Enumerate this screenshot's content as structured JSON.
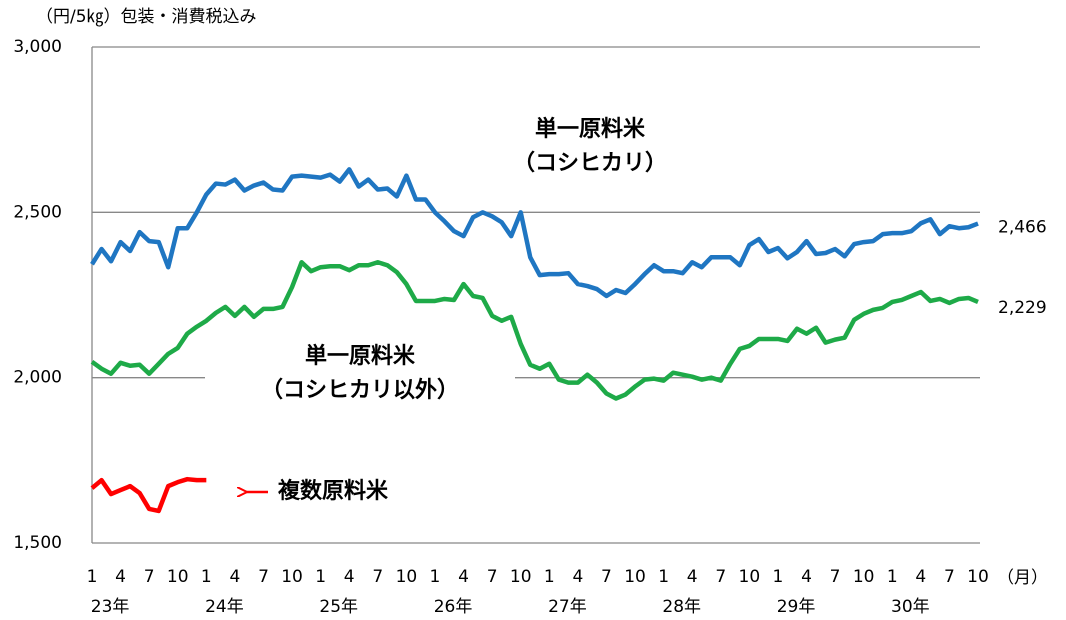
{
  "chart_data": {
    "type": "line",
    "y_label": "（円/5㎏）包装・消費税込み",
    "x_unit": "（月）",
    "years": [
      "23年",
      "24年",
      "25年",
      "26年",
      "27年",
      "28年",
      "29年",
      "30年"
    ],
    "categories": [
      "1",
      null,
      null,
      "4",
      null,
      null,
      "7",
      null,
      null,
      "10",
      null,
      null,
      "1",
      null,
      null,
      "4",
      null,
      null,
      "7",
      null,
      null,
      "10",
      null,
      null,
      "1",
      null,
      null,
      "4",
      null,
      null,
      "7",
      null,
      null,
      "10",
      null,
      null,
      "1",
      null,
      null,
      "4",
      null,
      null,
      "7",
      null,
      null,
      "10",
      null,
      null,
      "1",
      null,
      null,
      "4",
      null,
      null,
      "7",
      null,
      null,
      "10",
      null,
      null,
      "1",
      null,
      null,
      "4",
      null,
      null,
      "7",
      null,
      null,
      "10",
      null,
      null,
      "1",
      null,
      null,
      "4",
      null,
      null,
      "7",
      null,
      null,
      "10",
      null,
      null,
      "1",
      null,
      null,
      "4",
      null,
      null,
      "7",
      null,
      null,
      "10"
    ],
    "ylim": [
      1500,
      3000
    ],
    "yticks": [
      {
        "value": 1500,
        "label": "1,500"
      },
      {
        "value": 2000,
        "label": "2,000"
      },
      {
        "value": 2500,
        "label": "2,500"
      },
      {
        "value": 3000,
        "label": "3,000"
      }
    ],
    "grid": true,
    "series": [
      {
        "name": "単一原料米（コシヒカリ）",
        "color": "#1f76c2",
        "values": [
          2343,
          2389,
          2352,
          2410,
          2383,
          2440,
          2413,
          2410,
          2334,
          2452,
          2452,
          2500,
          2554,
          2587,
          2584,
          2599,
          2566,
          2581,
          2590,
          2569,
          2566,
          2608,
          2611,
          2608,
          2605,
          2614,
          2593,
          2630,
          2578,
          2599,
          2569,
          2572,
          2548,
          2611,
          2539,
          2539,
          2500,
          2473,
          2443,
          2428,
          2485,
          2500,
          2488,
          2470,
          2428,
          2500,
          2364,
          2310,
          2313,
          2313,
          2316,
          2283,
          2277,
          2268,
          2247,
          2265,
          2256,
          2283,
          2313,
          2340,
          2322,
          2322,
          2316,
          2349,
          2334,
          2364,
          2364,
          2364,
          2340,
          2401,
          2419,
          2380,
          2392,
          2361,
          2380,
          2413,
          2374,
          2377,
          2389,
          2367,
          2404,
          2410,
          2413,
          2434,
          2437,
          2437,
          2443,
          2467,
          2479,
          2434,
          2458,
          2452,
          2455,
          2466
        ],
        "value_labels": [
          null,
          null,
          null,
          null,
          null,
          null,
          null,
          null,
          null,
          null,
          null,
          null,
          null,
          null,
          null,
          null,
          null,
          null,
          null,
          null,
          null,
          null,
          null,
          null,
          null,
          null,
          null,
          null,
          null,
          null,
          null,
          null,
          null,
          null,
          null,
          null,
          null,
          null,
          null,
          null,
          null,
          null,
          null,
          null,
          null,
          null,
          null,
          null,
          null,
          null,
          null,
          null,
          null,
          null,
          null,
          null,
          null,
          null,
          null,
          null,
          null,
          null,
          null,
          null,
          null,
          null,
          null,
          null,
          null,
          null,
          null,
          null,
          null,
          null,
          null,
          null,
          null,
          null,
          null,
          null,
          null,
          null,
          null,
          null,
          null,
          null,
          null,
          null,
          null,
          null,
          null,
          null,
          null,
          "2,466"
        ]
      },
      {
        "name": "単一原料米（コシヒカリ以外）",
        "color": "#1eaa48",
        "values": [
          2048,
          2027,
          2012,
          2045,
          2036,
          2039,
          2012,
          2042,
          2072,
          2090,
          2133,
          2154,
          2172,
          2196,
          2214,
          2187,
          2214,
          2184,
          2208,
          2208,
          2214,
          2274,
          2349,
          2322,
          2334,
          2337,
          2337,
          2325,
          2340,
          2340,
          2349,
          2340,
          2319,
          2283,
          2232,
          2232,
          2232,
          2238,
          2235,
          2283,
          2247,
          2241,
          2187,
          2172,
          2184,
          2102,
          2039,
          2027,
          2042,
          1994,
          1985,
          1985,
          2009,
          1985,
          1952,
          1937,
          1949,
          1973,
          1994,
          1997,
          1991,
          2015,
          2009,
          2003,
          1994,
          2000,
          1991,
          2042,
          2087,
          2096,
          2117,
          2117,
          2117,
          2111,
          2148,
          2133,
          2151,
          2106,
          2115,
          2121,
          2175,
          2193,
          2205,
          2211,
          2229,
          2235,
          2247,
          2259,
          2232,
          2238,
          2226,
          2238,
          2241,
          2229
        ],
        "value_labels": [
          null,
          null,
          null,
          null,
          null,
          null,
          null,
          null,
          null,
          null,
          null,
          null,
          null,
          null,
          null,
          null,
          null,
          null,
          null,
          null,
          null,
          null,
          null,
          null,
          null,
          null,
          null,
          null,
          null,
          null,
          null,
          null,
          null,
          null,
          null,
          null,
          null,
          null,
          null,
          null,
          null,
          null,
          null,
          null,
          null,
          null,
          null,
          null,
          null,
          null,
          null,
          null,
          null,
          null,
          null,
          null,
          null,
          null,
          null,
          null,
          null,
          null,
          null,
          null,
          null,
          null,
          null,
          null,
          null,
          null,
          null,
          null,
          null,
          null,
          null,
          null,
          null,
          null,
          null,
          null,
          null,
          null,
          null,
          null,
          null,
          null,
          null,
          null,
          null,
          null,
          null,
          null,
          null,
          "2,229"
        ]
      },
      {
        "name": "複数原料米",
        "color": "#ff0000",
        "values": [
          1666,
          1690,
          1648,
          1660,
          1672,
          1651,
          1603,
          1597,
          1672,
          1684,
          1693,
          1690,
          1690,
          null,
          null,
          null,
          null,
          null,
          null,
          null,
          null,
          null,
          null,
          null,
          null,
          null,
          null,
          null,
          null,
          null,
          null,
          null,
          null,
          null,
          null,
          null,
          null,
          null,
          null,
          null,
          null,
          null,
          null,
          null,
          null,
          null,
          null,
          null,
          null,
          null,
          null,
          null,
          null,
          null,
          null,
          null,
          null,
          null,
          null,
          null,
          null,
          null,
          null,
          null,
          null,
          null,
          null,
          null,
          null,
          null,
          null,
          null,
          null,
          null,
          null,
          null,
          null,
          null,
          null,
          null,
          null,
          null,
          null,
          null,
          null,
          null,
          null,
          null,
          null,
          null,
          null,
          null,
          null,
          null
        ]
      }
    ]
  }
}
